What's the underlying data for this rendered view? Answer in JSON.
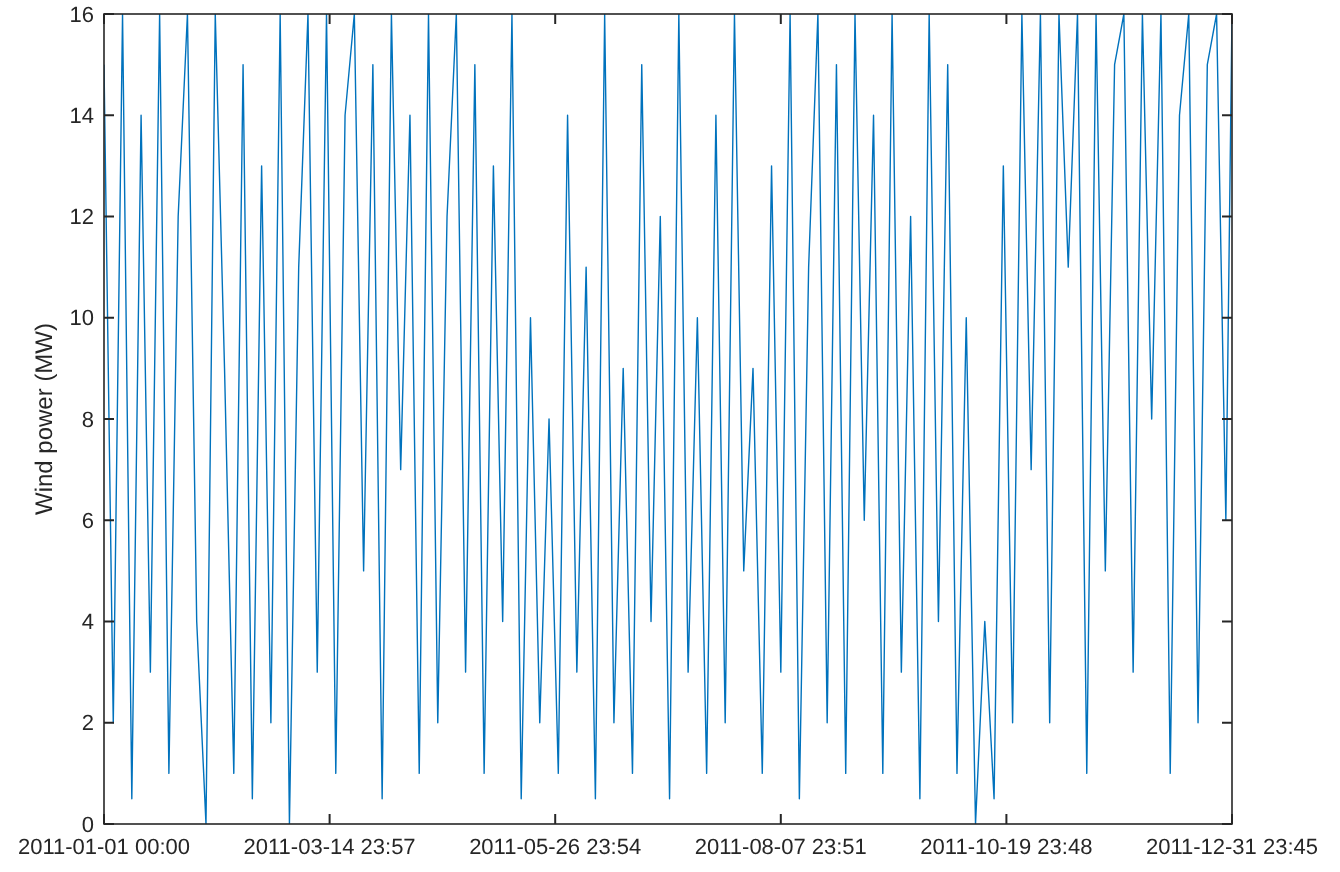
{
  "chart_data": {
    "type": "line",
    "ylabel": "Wind power (MW)",
    "grid": false,
    "x": [
      "2011-01-01T00:00",
      "2011-01-04",
      "2011-01-07",
      "2011-01-10",
      "2011-01-13",
      "2011-01-16",
      "2011-01-19",
      "2011-01-22",
      "2011-01-25",
      "2011-01-28",
      "2011-01-31",
      "2011-02-03",
      "2011-02-06",
      "2011-02-09",
      "2011-02-12",
      "2011-02-15",
      "2011-02-18",
      "2011-02-21",
      "2011-02-24",
      "2011-02-27",
      "2011-03-02",
      "2011-03-05",
      "2011-03-08",
      "2011-03-11",
      "2011-03-14",
      "2011-03-17",
      "2011-03-20",
      "2011-03-23",
      "2011-03-26",
      "2011-03-29",
      "2011-04-01",
      "2011-04-04",
      "2011-04-07",
      "2011-04-10",
      "2011-04-13",
      "2011-04-16",
      "2011-04-19",
      "2011-04-22",
      "2011-04-25",
      "2011-04-28",
      "2011-05-01",
      "2011-05-04",
      "2011-05-07",
      "2011-05-10",
      "2011-05-13",
      "2011-05-16",
      "2011-05-19",
      "2011-05-22",
      "2011-05-25",
      "2011-05-28",
      "2011-05-31",
      "2011-06-03",
      "2011-06-06",
      "2011-06-09",
      "2011-06-12",
      "2011-06-15",
      "2011-06-18",
      "2011-06-21",
      "2011-06-24",
      "2011-06-27",
      "2011-06-30",
      "2011-07-03",
      "2011-07-06",
      "2011-07-09",
      "2011-07-12",
      "2011-07-15",
      "2011-07-18",
      "2011-07-21",
      "2011-07-24",
      "2011-07-27",
      "2011-07-30",
      "2011-08-02",
      "2011-08-05",
      "2011-08-08",
      "2011-08-11",
      "2011-08-14",
      "2011-08-17",
      "2011-08-20",
      "2011-08-23",
      "2011-08-26",
      "2011-08-29",
      "2011-09-01",
      "2011-09-04",
      "2011-09-07",
      "2011-09-10",
      "2011-09-13",
      "2011-09-16",
      "2011-09-19",
      "2011-09-22",
      "2011-09-25",
      "2011-09-28",
      "2011-10-01",
      "2011-10-04",
      "2011-10-07",
      "2011-10-10",
      "2011-10-13",
      "2011-10-16",
      "2011-10-19",
      "2011-10-22",
      "2011-10-25",
      "2011-10-28",
      "2011-10-31",
      "2011-11-03",
      "2011-11-06",
      "2011-11-09",
      "2011-11-12",
      "2011-11-15",
      "2011-11-18",
      "2011-11-21",
      "2011-11-24",
      "2011-11-27",
      "2011-11-30",
      "2011-12-03",
      "2011-12-06",
      "2011-12-09",
      "2011-12-12",
      "2011-12-15",
      "2011-12-18",
      "2011-12-21",
      "2011-12-24",
      "2011-12-27",
      "2011-12-30",
      "2011-12-31T23:45"
    ],
    "series": [
      {
        "color": "#0072bd",
        "values": [
          15,
          2,
          16,
          0.5,
          14,
          3,
          16,
          1,
          12,
          16,
          4,
          0,
          16,
          9,
          1,
          15,
          0.5,
          13,
          2,
          16,
          0,
          11,
          16,
          3,
          16,
          1,
          14,
          16,
          5,
          15,
          0.5,
          16,
          7,
          14,
          1,
          16,
          2,
          12,
          16,
          3,
          15,
          1,
          13,
          4,
          16,
          0.5,
          10,
          2,
          8,
          1,
          14,
          3,
          11,
          0.5,
          16,
          2,
          9,
          1,
          15,
          4,
          12,
          0.5,
          16,
          3,
          10,
          1,
          14,
          2,
          16,
          5,
          9,
          1,
          13,
          3,
          16,
          0.5,
          11,
          16,
          2,
          15,
          1,
          16,
          6,
          14,
          1,
          16,
          3,
          12,
          0.5,
          16,
          4,
          15,
          1,
          10,
          0,
          4,
          0.5,
          13,
          2,
          16,
          7,
          16,
          2,
          16,
          11,
          16,
          1,
          16,
          5,
          15,
          16,
          3,
          16,
          8,
          16,
          1,
          14,
          16,
          2,
          15,
          16,
          6,
          16
        ]
      }
    ],
    "xlim": [
      "2011-01-01T00:00",
      "2011-12-31T23:45"
    ],
    "xticks": [
      {
        "value": "2011-01-01T00:00",
        "label": "2011-01-01 00:00"
      },
      {
        "value": "2011-03-14T23:57",
        "label": "2011-03-14 23:57"
      },
      {
        "value": "2011-05-26T23:54",
        "label": "2011-05-26 23:54"
      },
      {
        "value": "2011-08-07T23:51",
        "label": "2011-08-07 23:51"
      },
      {
        "value": "2011-10-19T23:48",
        "label": "2011-10-19 23:48"
      },
      {
        "value": "2011-12-31T23:45",
        "label": "2011-12-31 23:45"
      }
    ],
    "ylim": [
      0,
      16
    ],
    "yticks": [
      0,
      2,
      4,
      6,
      8,
      10,
      12,
      14,
      16
    ]
  }
}
